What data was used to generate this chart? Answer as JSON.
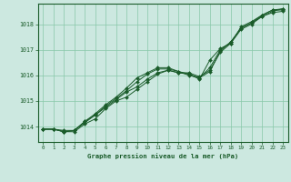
{
  "title": "Graphe pression niveau de la mer (hPa)",
  "bg_color": "#cce8e0",
  "line_color": "#1a5c2a",
  "grid_color": "#88c8a8",
  "text_color": "#1a5c2a",
  "xlim": [
    -0.5,
    23.5
  ],
  "ylim": [
    1013.4,
    1018.8
  ],
  "yticks": [
    1014,
    1015,
    1016,
    1017,
    1018
  ],
  "xticks": [
    0,
    1,
    2,
    3,
    4,
    5,
    6,
    7,
    8,
    9,
    10,
    11,
    12,
    13,
    14,
    15,
    16,
    17,
    18,
    19,
    20,
    21,
    22,
    23
  ],
  "series": [
    [
      1013.9,
      1013.9,
      1013.8,
      1013.85,
      1014.15,
      1014.45,
      1014.75,
      1015.05,
      1015.35,
      1015.55,
      1015.85,
      1016.1,
      1016.2,
      1016.1,
      1016.1,
      1015.95,
      1016.2,
      1016.9,
      1017.25,
      1017.8,
      1018.0,
      1018.3,
      1018.45,
      1018.5
    ],
    [
      1013.9,
      1013.9,
      1013.8,
      1013.8,
      1014.1,
      1014.3,
      1014.7,
      1015.0,
      1015.15,
      1015.45,
      1015.75,
      1016.05,
      1016.2,
      1016.1,
      1016.05,
      1015.9,
      1016.15,
      1016.95,
      1017.3,
      1017.85,
      1018.05,
      1018.35,
      1018.55,
      1018.55
    ],
    [
      1013.9,
      1013.9,
      1013.8,
      1013.85,
      1014.2,
      1014.45,
      1014.8,
      1015.1,
      1015.4,
      1015.75,
      1016.05,
      1016.25,
      1016.25,
      1016.15,
      1016.05,
      1015.85,
      1016.6,
      1017.05,
      1017.25,
      1017.9,
      1018.1,
      1018.35,
      1018.55,
      1018.6
    ],
    [
      1013.9,
      1013.9,
      1013.85,
      1013.85,
      1014.2,
      1014.5,
      1014.85,
      1015.15,
      1015.5,
      1015.9,
      1016.1,
      1016.3,
      1016.3,
      1016.15,
      1016.0,
      1015.9,
      1016.3,
      1017.0,
      1017.3,
      1017.85,
      1018.05,
      1018.3,
      1018.5,
      1018.6
    ]
  ]
}
